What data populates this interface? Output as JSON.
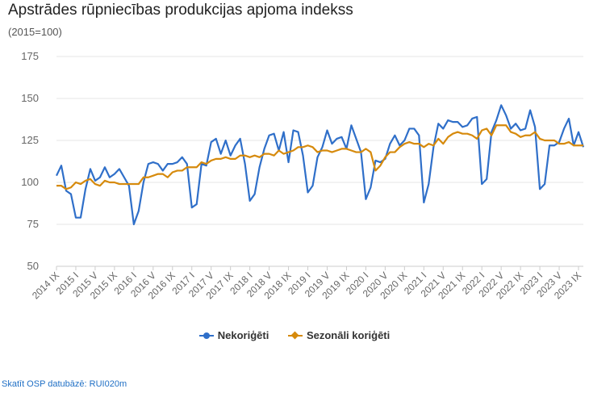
{
  "title": "Apstrādes rūpniecības produkcijas apjoma indekss",
  "subtitle": "(2015=100)",
  "source_link": "Skatīt OSP datubāzē: RUI020m",
  "legend": {
    "nekorigeti": "Nekoriģēti",
    "sezonali": "Sezonāli koriģēti"
  },
  "colors": {
    "nekorigeti": "#2f6fc9",
    "sezonali": "#d68a0c",
    "grid": "#e6e6e6",
    "axis_text": "#666666"
  },
  "chart_data": {
    "type": "line",
    "title": "Apstrādes rūpniecības produkcijas apjoma indekss",
    "subtitle": "(2015=100)",
    "x_start": "2014-09",
    "x_end": "2023-09",
    "ylim": [
      50,
      175
    ],
    "yticks": [
      50,
      75,
      100,
      125,
      150,
      175
    ],
    "grid": "horizontal",
    "legend_position": "bottom-center",
    "x_tick_labels": [
      "2014 IX",
      "2015 I",
      "2015 V",
      "2015 IX",
      "2016 I",
      "2016 V",
      "2016 IX",
      "2017 I",
      "2017 V",
      "2017 IX",
      "2018 I",
      "2018 V",
      "2018 IX",
      "2019 I",
      "2019 V",
      "2019 IX",
      "2020 I",
      "2020 V",
      "2020 IX",
      "2021 I",
      "2021 V",
      "2021 IX",
      "2022 I",
      "2022 V",
      "2022 IX",
      "2023 I",
      "2023 V",
      "2023 IX"
    ],
    "series": [
      {
        "name": "Nekoriģēti",
        "values": [
          104,
          110,
          95,
          93,
          79,
          79,
          96,
          108,
          101,
          103,
          109,
          103,
          105,
          108,
          103,
          98,
          75,
          83,
          100,
          111,
          112,
          111,
          107,
          111,
          111,
          112,
          115,
          111,
          85,
          87,
          111,
          110,
          124,
          126,
          117,
          125,
          116,
          122,
          126,
          111,
          89,
          93,
          109,
          120,
          128,
          129,
          119,
          130,
          112,
          131,
          130,
          116,
          94,
          98,
          115,
          121,
          131,
          123,
          126,
          127,
          120,
          134,
          126,
          118,
          90,
          97,
          113,
          112,
          114,
          123,
          128,
          122,
          125,
          132,
          132,
          128,
          88,
          99,
          121,
          135,
          132,
          137,
          136,
          136,
          133,
          134,
          138,
          139,
          99,
          102,
          130,
          137,
          146,
          140,
          132,
          135,
          131,
          132,
          143,
          133,
          96,
          99,
          122,
          122,
          124,
          132,
          138,
          122,
          130,
          121
        ]
      },
      {
        "name": "Sezonāli koriģēti",
        "values": [
          98,
          98,
          96,
          97,
          100,
          99,
          101,
          102,
          99,
          98,
          101,
          100,
          100,
          99,
          99,
          99,
          99,
          99,
          103,
          103,
          104,
          105,
          105,
          103,
          106,
          107,
          107,
          109,
          109,
          109,
          112,
          111,
          113,
          114,
          114,
          115,
          114,
          114,
          116,
          116,
          115,
          116,
          115,
          117,
          117,
          116,
          119,
          117,
          118,
          119,
          121,
          121,
          122,
          121,
          118,
          119,
          119,
          118,
          119,
          120,
          120,
          119,
          118,
          118,
          120,
          118,
          107,
          110,
          115,
          118,
          118,
          121,
          123,
          124,
          123,
          123,
          121,
          123,
          122,
          126,
          123,
          127,
          129,
          130,
          129,
          129,
          128,
          126,
          131,
          132,
          128,
          134,
          134,
          134,
          130,
          129,
          127,
          128,
          128,
          130,
          126,
          125,
          125,
          125,
          123,
          123,
          124,
          122,
          122,
          122
        ]
      }
    ]
  }
}
